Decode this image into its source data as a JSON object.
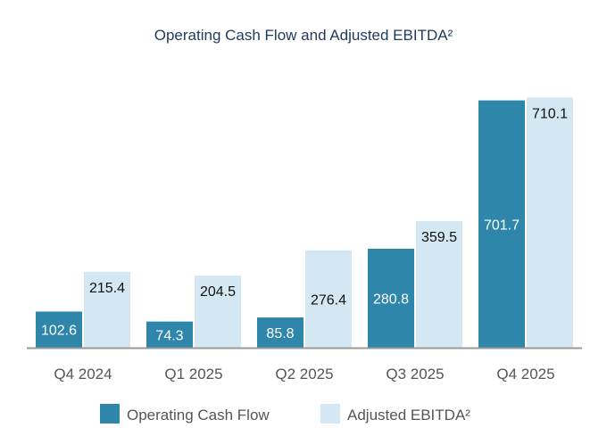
{
  "chart_data": {
    "type": "bar",
    "title": "Operating Cash Flow and Adjusted EBITDA²",
    "categories": [
      "Q4 2024",
      "Q1 2025",
      "Q2 2025",
      "Q3 2025",
      "Q4 2025"
    ],
    "series": [
      {
        "name": "Operating Cash Flow",
        "values": [
          102.6,
          74.3,
          85.8,
          280.8,
          701.7
        ],
        "color": "#2e86ab"
      },
      {
        "name": "Adjusted EBITDA²",
        "values": [
          215.4,
          204.5,
          276.4,
          359.5,
          710.1
        ],
        "color": "#d3e8f2"
      }
    ],
    "data_labels": true,
    "grid": false,
    "ylim": [
      0,
      720
    ],
    "legend": "bottom"
  }
}
